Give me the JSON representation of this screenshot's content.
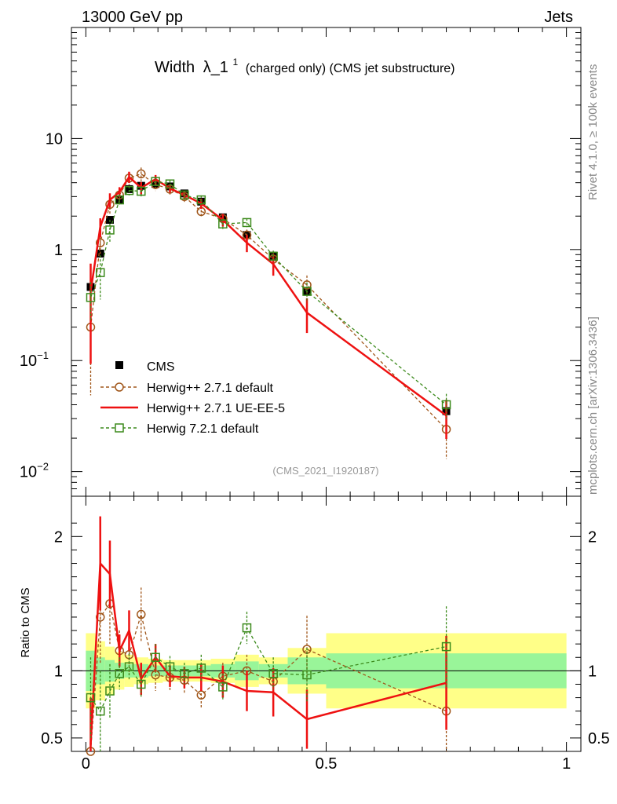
{
  "header": {
    "left": "13000 GeV pp",
    "right": "Jets",
    "side_top": "Rivet 4.1.0, ≥ 100k events",
    "side_bottom": "mcplots.cern.ch [arXiv:1306.3436]"
  },
  "chart_data": {
    "type": "line",
    "title": "Width",
    "title_symbol": "λ_1",
    "title_superscript": "1",
    "title_suffix": "(charged only) (CMS jet substructure)",
    "analysis_id": "(CMS_2021_I1920187)",
    "xlim": [
      -0.03,
      1.03
    ],
    "main": {
      "yscale": "log",
      "ylim": [
        0.006,
        100
      ],
      "ytick_labels": [
        {
          "value": 10,
          "label": "10"
        },
        {
          "value": 1,
          "label": "1"
        },
        {
          "value": 0.1,
          "label": "10",
          "exp": "−1"
        },
        {
          "value": 0.01,
          "label": "10",
          "exp": "−2"
        }
      ]
    },
    "ratio": {
      "ylabel": "Ratio to CMS",
      "ylim": [
        0.4,
        2.3
      ],
      "ytick_labels": [
        {
          "value": 2,
          "label": "2"
        },
        {
          "value": 1,
          "label": "1"
        },
        {
          "value": 0.5,
          "label": "0.5"
        }
      ]
    },
    "xtick_labels": [
      {
        "value": 0,
        "label": "0"
      },
      {
        "value": 0.5,
        "label": "0.5"
      },
      {
        "value": 1,
        "label": "1"
      }
    ],
    "bins": [
      {
        "lo": 0.0,
        "hi": 0.02,
        "inner": 0.15,
        "outer": 0.28
      },
      {
        "lo": 0.02,
        "hi": 0.04,
        "inner": 0.1,
        "outer": 0.22
      },
      {
        "lo": 0.04,
        "hi": 0.06,
        "inner": 0.08,
        "outer": 0.18
      },
      {
        "lo": 0.06,
        "hi": 0.08,
        "inner": 0.06,
        "outer": 0.14
      },
      {
        "lo": 0.08,
        "hi": 0.1,
        "inner": 0.05,
        "outer": 0.12
      },
      {
        "lo": 0.1,
        "hi": 0.13,
        "inner": 0.05,
        "outer": 0.1
      },
      {
        "lo": 0.13,
        "hi": 0.16,
        "inner": 0.04,
        "outer": 0.09
      },
      {
        "lo": 0.16,
        "hi": 0.19,
        "inner": 0.04,
        "outer": 0.08
      },
      {
        "lo": 0.19,
        "hi": 0.22,
        "inner": 0.04,
        "outer": 0.08
      },
      {
        "lo": 0.22,
        "hi": 0.26,
        "inner": 0.04,
        "outer": 0.08
      },
      {
        "lo": 0.26,
        "hi": 0.31,
        "inner": 0.05,
        "outer": 0.09
      },
      {
        "lo": 0.31,
        "hi": 0.36,
        "inner": 0.07,
        "outer": 0.12
      },
      {
        "lo": 0.36,
        "hi": 0.42,
        "inner": 0.05,
        "outer": 0.1
      },
      {
        "lo": 0.42,
        "hi": 0.5,
        "inner": 0.1,
        "outer": 0.17
      },
      {
        "lo": 0.5,
        "hi": 1.0,
        "inner": 0.13,
        "outer": 0.28
      }
    ],
    "series": [
      {
        "name": "CMS",
        "label": "CMS",
        "color": "#000000",
        "style": "data",
        "x": [
          0.01,
          0.03,
          0.05,
          0.07,
          0.09,
          0.115,
          0.145,
          0.175,
          0.205,
          0.24,
          0.285,
          0.335,
          0.39,
          0.46,
          0.75
        ],
        "y": [
          0.46,
          0.92,
          1.85,
          2.8,
          3.5,
          3.75,
          3.9,
          3.7,
          3.2,
          2.7,
          1.95,
          1.35,
          0.88,
          0.42,
          0.035
        ],
        "yerr": [
          0.06,
          0.08,
          0.12,
          0.15,
          0.15,
          0.15,
          0.15,
          0.15,
          0.12,
          0.1,
          0.08,
          0.06,
          0.05,
          0.03,
          0.004
        ],
        "ratio": [
          1,
          1,
          1,
          1,
          1,
          1,
          1,
          1,
          1,
          1,
          1,
          1,
          1,
          1,
          1
        ]
      },
      {
        "name": "herwig-271-default",
        "label": "Herwig++ 2.7.1 default",
        "color": "#a0561a",
        "style": "circle-dashed",
        "x": [
          0.01,
          0.03,
          0.05,
          0.07,
          0.09,
          0.115,
          0.145,
          0.175,
          0.205,
          0.24,
          0.285,
          0.335,
          0.39,
          0.46,
          0.75
        ],
        "y": [
          0.2,
          1.15,
          2.55,
          3.1,
          4.4,
          4.8,
          3.85,
          3.5,
          3.0,
          2.2,
          1.9,
          1.35,
          0.82,
          0.48,
          0.024
        ],
        "ratio": [
          0.37,
          1.4,
          1.5,
          1.15,
          1.12,
          1.42,
          0.97,
          0.95,
          0.93,
          0.82,
          0.96,
          1.0,
          0.92,
          1.16,
          0.7
        ],
        "ratio_err": [
          0.28,
          0.35,
          0.3,
          0.15,
          0.15,
          0.2,
          0.12,
          0.1,
          0.1,
          0.1,
          0.1,
          0.12,
          0.12,
          0.25,
          0.32
        ]
      },
      {
        "name": "herwig-271-ue-ee-5",
        "label": "Herwig++ 2.7.1 UE-EE-5",
        "color": "#ee1111",
        "style": "solid",
        "x": [
          0.01,
          0.03,
          0.05,
          0.07,
          0.09,
          0.115,
          0.145,
          0.175,
          0.205,
          0.24,
          0.285,
          0.335,
          0.39,
          0.46,
          0.75
        ],
        "y": [
          0.42,
          1.6,
          2.8,
          3.3,
          4.5,
          3.6,
          4.3,
          3.55,
          3.1,
          2.6,
          1.85,
          1.15,
          0.74,
          0.27,
          0.032
        ],
        "ratio": [
          0.45,
          1.8,
          1.72,
          1.15,
          1.3,
          0.94,
          1.1,
          0.96,
          0.95,
          0.95,
          0.92,
          0.85,
          0.84,
          0.64,
          0.91
        ],
        "ratio_err": [
          0.35,
          0.35,
          0.25,
          0.12,
          0.15,
          0.12,
          0.1,
          0.08,
          0.08,
          0.1,
          0.12,
          0.15,
          0.18,
          0.22,
          0.35
        ]
      },
      {
        "name": "herwig-721-default",
        "label": "Herwig 7.2.1 default",
        "color": "#3c8a1c",
        "style": "square-dashed",
        "x": [
          0.01,
          0.03,
          0.05,
          0.07,
          0.09,
          0.115,
          0.145,
          0.175,
          0.205,
          0.24,
          0.285,
          0.335,
          0.39,
          0.46,
          0.75
        ],
        "y": [
          0.37,
          0.62,
          1.5,
          2.8,
          3.4,
          3.35,
          4.1,
          3.9,
          3.1,
          2.8,
          1.7,
          1.75,
          0.87,
          0.42,
          0.04
        ],
        "ratio": [
          0.8,
          0.7,
          0.85,
          0.98,
          1.03,
          0.9,
          1.1,
          1.03,
          0.98,
          1.02,
          0.88,
          1.32,
          0.98,
          0.97,
          1.18
        ],
        "ratio_err": [
          0.3,
          0.3,
          0.2,
          0.12,
          0.1,
          0.1,
          0.1,
          0.08,
          0.08,
          0.1,
          0.1,
          0.12,
          0.12,
          0.2,
          0.3
        ]
      }
    ],
    "legend": {
      "placement": "lower-left"
    }
  }
}
